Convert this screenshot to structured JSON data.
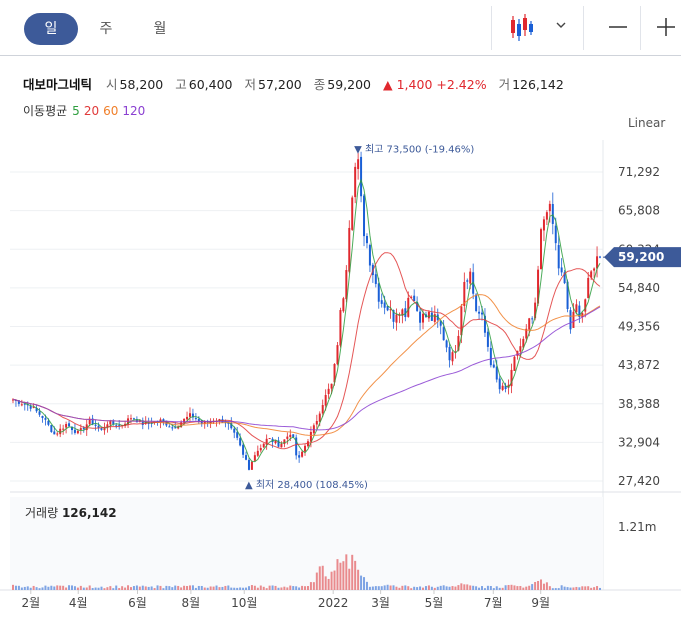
{
  "toolbar": {
    "tabs": [
      {
        "label": "일",
        "active": true
      },
      {
        "label": "주",
        "active": false
      },
      {
        "label": "월",
        "active": false
      }
    ],
    "icons": [
      "candlestick-chart-icon",
      "chevron-down-icon",
      "minus-icon",
      "plus-icon"
    ]
  },
  "stock": {
    "name": "대보마그네틱",
    "open_label": "시",
    "open": "58,200",
    "high_label": "고",
    "high": "60,400",
    "low_label": "저",
    "low": "57,200",
    "close_label": "종",
    "close": "59,200",
    "change_arrow": "▲",
    "change": "1,400",
    "change_pct": "+2.42%",
    "volume_label": "거",
    "volume": "126,142"
  },
  "moving_avg": {
    "label": "이동평균",
    "periods": [
      {
        "label": "5",
        "color": "#2e9e3e"
      },
      {
        "label": "20",
        "color": "#e03a3a"
      },
      {
        "label": "60",
        "color": "#f07f2a"
      },
      {
        "label": "120",
        "color": "#8a3fd1"
      }
    ]
  },
  "scale_toggle": "Linear",
  "colors": {
    "up": "#e0282e",
    "down": "#1a5fd6",
    "accent": "#3d5a99",
    "price_tag": "#3d5a99"
  },
  "chart_data": {
    "type": "candlestick",
    "price_axis_ticks": [
      "71,292",
      "65,808",
      "60,324",
      "54,840",
      "49,356",
      "43,872",
      "38,388",
      "32,904",
      "27,420"
    ],
    "price_axis_values": [
      71292,
      65808,
      60324,
      54840,
      49356,
      43872,
      38388,
      32904,
      27420
    ],
    "current_price_label": "59,200",
    "current_price": 59200,
    "x_tick_labels": [
      "2월",
      "4월",
      "6월",
      "8월",
      "10월",
      "2022",
      "3월",
      "5월",
      "7월",
      "9월"
    ],
    "high_annotation": "▼ 최고 73,500 (-19.46%)",
    "low_annotation": "▲ 최저 28,400 (108.45%)",
    "high_value": 73500,
    "low_value": 28400,
    "close_path": [
      [
        0,
        39000
      ],
      [
        3,
        38000
      ],
      [
        5,
        36500
      ],
      [
        7,
        34000
      ],
      [
        9,
        35500
      ],
      [
        11,
        34200
      ],
      [
        13,
        36000
      ],
      [
        15,
        34500
      ],
      [
        16,
        35800
      ],
      [
        18,
        35200
      ],
      [
        20,
        36500
      ],
      [
        22,
        35500
      ],
      [
        25,
        36000
      ],
      [
        27,
        35000
      ],
      [
        30,
        36800
      ],
      [
        32,
        35500
      ],
      [
        34,
        36200
      ],
      [
        36,
        35800
      ],
      [
        38,
        33000
      ],
      [
        39,
        30500
      ],
      [
        40,
        30000
      ],
      [
        41,
        31500
      ],
      [
        43,
        33500
      ],
      [
        45,
        32500
      ],
      [
        47,
        34500
      ],
      [
        48,
        30000
      ],
      [
        49,
        32000
      ],
      [
        51,
        35500
      ],
      [
        52,
        38000
      ],
      [
        53,
        40000
      ],
      [
        54,
        41500
      ],
      [
        55,
        49500
      ],
      [
        56,
        56000
      ],
      [
        57,
        68000
      ],
      [
        58,
        73500
      ],
      [
        59,
        64000
      ],
      [
        60,
        60000
      ],
      [
        61,
        56000
      ],
      [
        62,
        53000
      ],
      [
        63,
        52500
      ],
      [
        64,
        50500
      ],
      [
        65,
        52500
      ],
      [
        66,
        51000
      ],
      [
        67,
        55000
      ],
      [
        68,
        52000
      ],
      [
        69,
        50500
      ],
      [
        70,
        51000
      ],
      [
        72,
        49500
      ],
      [
        73,
        47000
      ],
      [
        74,
        44500
      ],
      [
        75,
        48000
      ],
      [
        76,
        56000
      ],
      [
        77,
        57500
      ],
      [
        78,
        52000
      ],
      [
        79,
        50500
      ],
      [
        80,
        47000
      ],
      [
        81,
        43000
      ],
      [
        82,
        40500
      ],
      [
        83,
        40000
      ],
      [
        84,
        42000
      ],
      [
        85,
        46000
      ],
      [
        86,
        47000
      ],
      [
        87,
        49500
      ],
      [
        88,
        51000
      ],
      [
        89,
        62000
      ],
      [
        90,
        67000
      ],
      [
        91,
        64000
      ],
      [
        92,
        58000
      ],
      [
        93,
        55000
      ],
      [
        94,
        49000
      ],
      [
        95,
        52000
      ],
      [
        96,
        51500
      ],
      [
        97,
        55000
      ],
      [
        98,
        58500
      ],
      [
        99,
        59200
      ]
    ],
    "volume_label": "거래량",
    "volume_value": "126,142",
    "volume_axis_tick": "1.21m",
    "volume_axis_value": 1210000,
    "volume_spikes": [
      [
        0,
        0.08
      ],
      [
        10,
        0.07
      ],
      [
        24,
        0.06
      ],
      [
        36,
        0.07
      ],
      [
        40,
        0.09
      ],
      [
        52,
        0.4
      ],
      [
        55,
        0.55
      ],
      [
        56,
        0.75
      ],
      [
        57,
        0.6
      ],
      [
        58,
        0.35
      ],
      [
        63,
        0.15
      ],
      [
        76,
        0.12
      ],
      [
        84,
        0.1
      ],
      [
        88,
        0.13
      ],
      [
        89,
        0.2
      ]
    ]
  }
}
